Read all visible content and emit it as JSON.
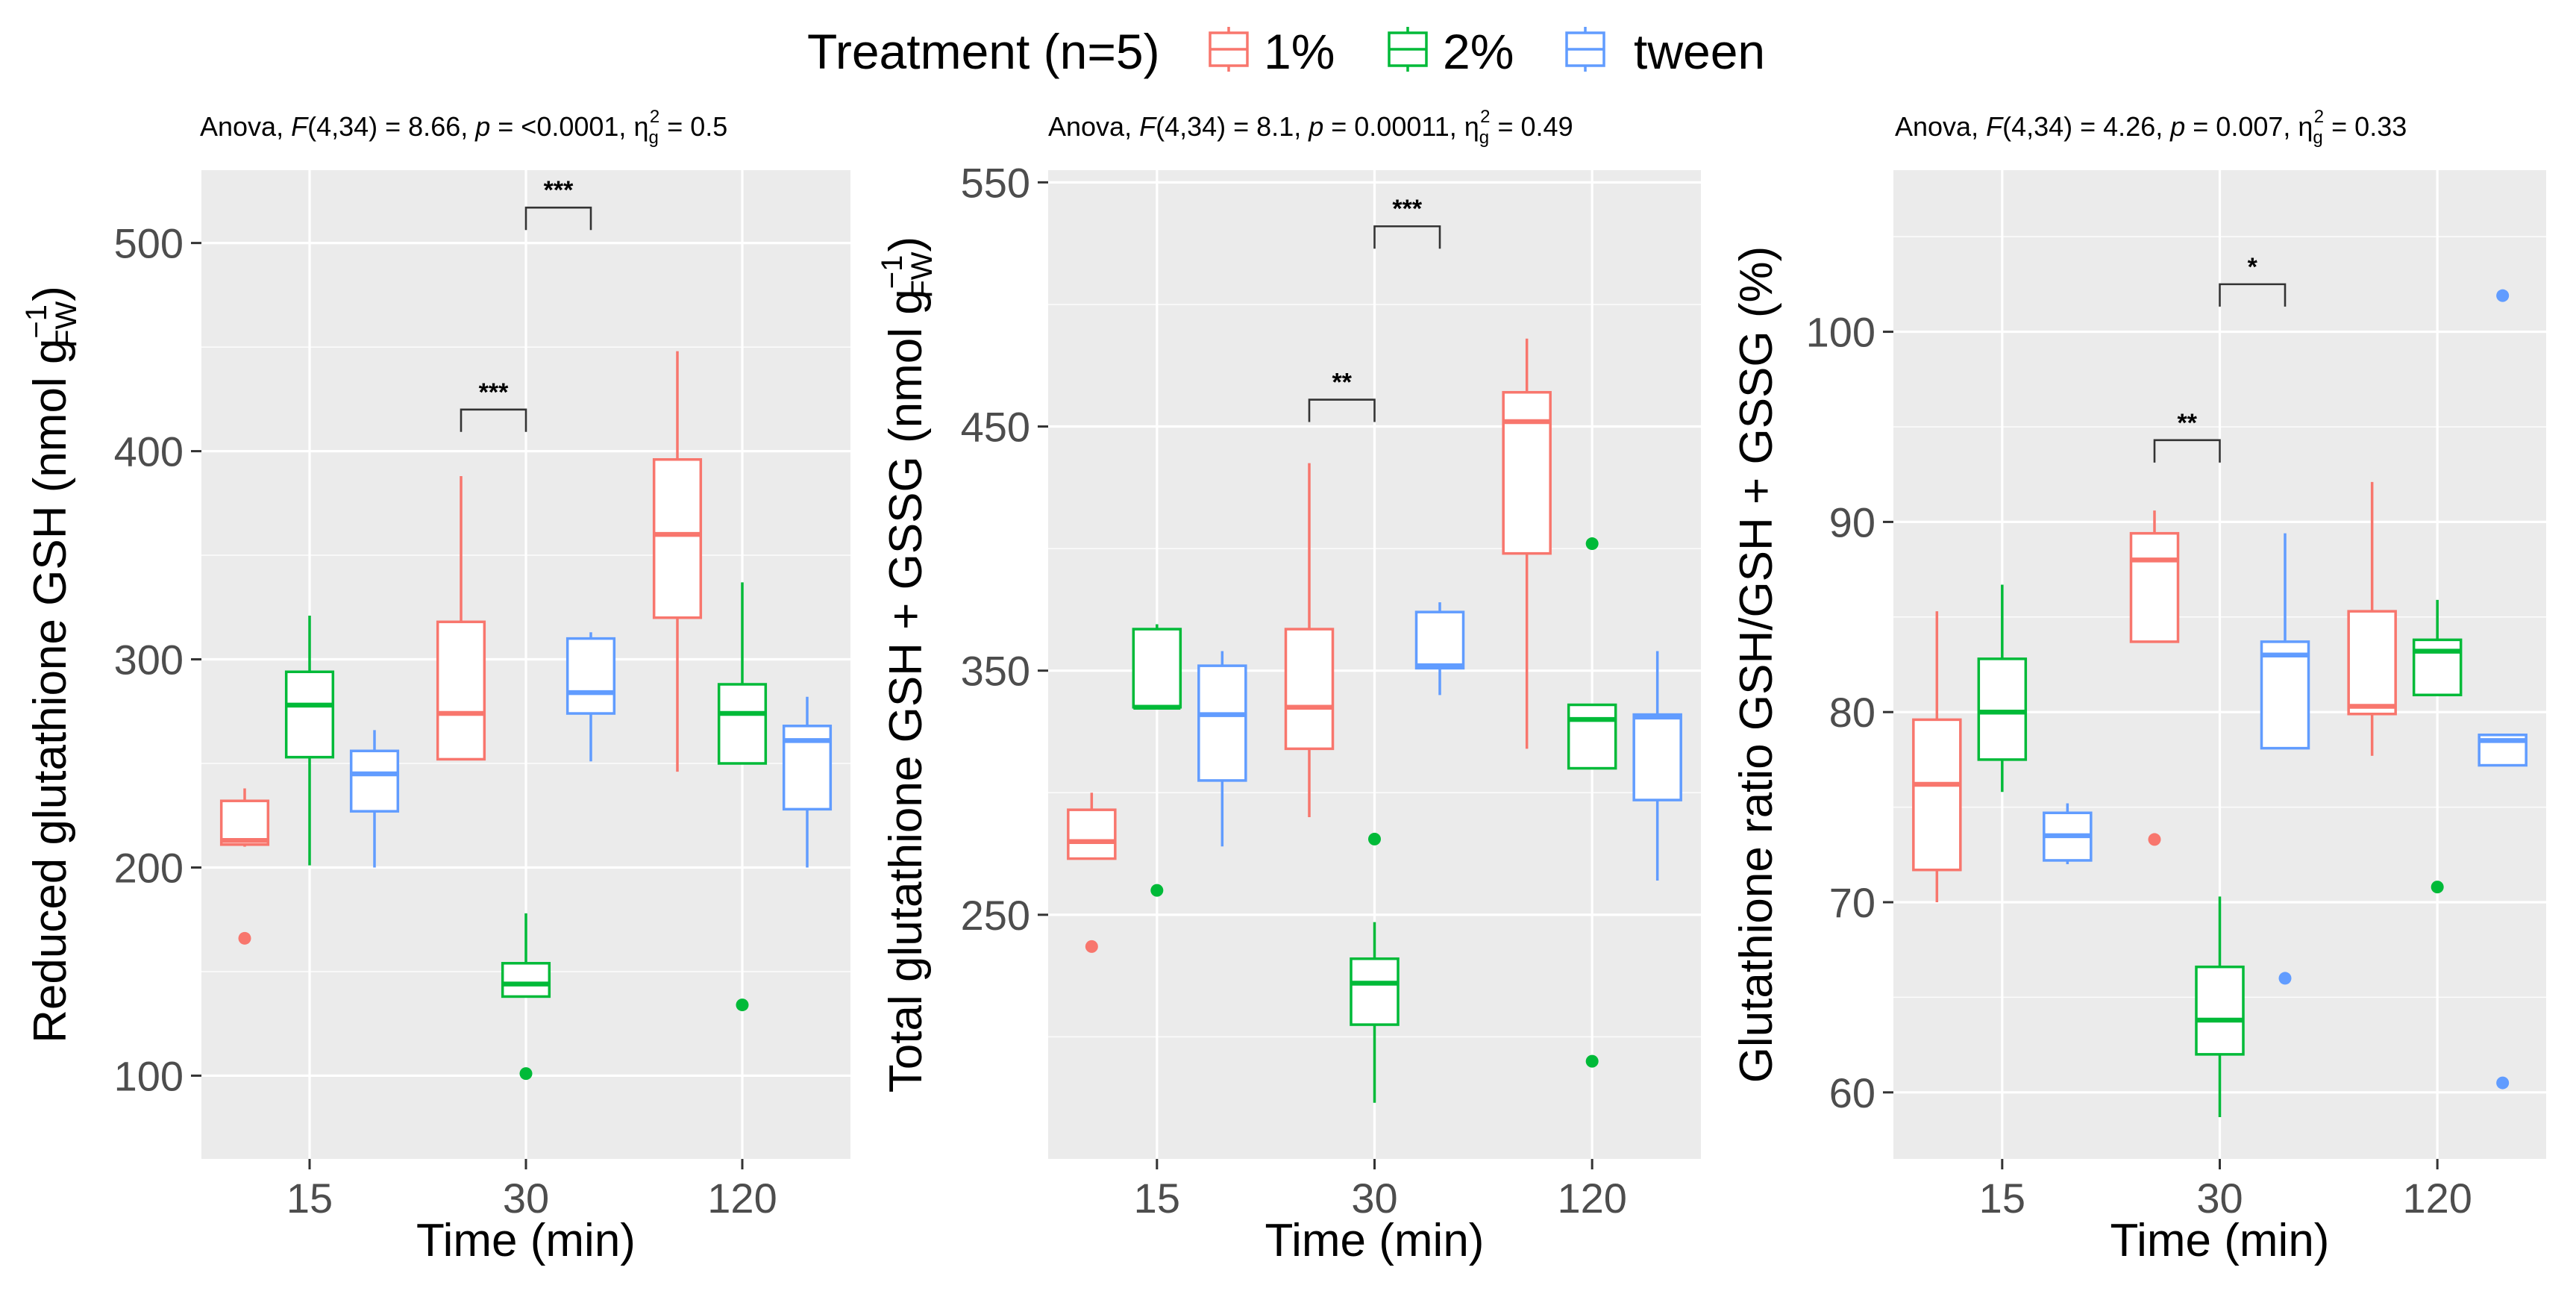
{
  "legend": {
    "title": "Treatment (n=5)",
    "entries": [
      {
        "label": "1%",
        "color": "#F8766D"
      },
      {
        "label": "2%",
        "color": "#00BA38"
      },
      {
        "label": "tween",
        "color": "#619CFF"
      }
    ]
  },
  "chart_data": [
    {
      "type": "box",
      "subtitle": {
        "prefix": "Anova, ",
        "F": "F",
        "df": "(4,34) = 8.66, ",
        "p": "p",
        "p_rest": " = <0.0001, ",
        "eta": "η",
        "eta_sub": "g",
        "eta_sup": "2",
        "eta_rest": " = 0.5"
      },
      "ylabel": {
        "main": "Reduced glutathione GSH (nmol g",
        "sup": "−1",
        "sub": "FW",
        "close": ")"
      },
      "xlabel": "Time (min)",
      "categories": [
        "15",
        "30",
        "120"
      ],
      "ylim": [
        60,
        535
      ],
      "yticks": [
        100,
        200,
        300,
        400,
        500
      ],
      "series": [
        {
          "name": "1%",
          "boxes": [
            {
              "whisker_low": 210,
              "q1": 211,
              "median": 213,
              "q3": 232,
              "whisker_high": 238,
              "outliers": [
                166
              ]
            },
            {
              "whisker_low": 252,
              "q1": 252,
              "median": 274,
              "q3": 318,
              "whisker_high": 388,
              "outliers": []
            },
            {
              "whisker_low": 246,
              "q1": 320,
              "median": 360,
              "q3": 396,
              "whisker_high": 448,
              "outliers": []
            }
          ]
        },
        {
          "name": "2%",
          "boxes": [
            {
              "whisker_low": 201,
              "q1": 253,
              "median": 278,
              "q3": 294,
              "whisker_high": 321,
              "outliers": []
            },
            {
              "whisker_low": 138,
              "q1": 138,
              "median": 144,
              "q3": 154,
              "whisker_high": 178,
              "outliers": [
                101
              ]
            },
            {
              "whisker_low": 250,
              "q1": 250,
              "median": 274,
              "q3": 288,
              "whisker_high": 337,
              "outliers": [
                134
              ]
            }
          ]
        },
        {
          "name": "tween",
          "boxes": [
            {
              "whisker_low": 200,
              "q1": 227,
              "median": 245,
              "q3": 256,
              "whisker_high": 266,
              "outliers": []
            },
            {
              "whisker_low": 251,
              "q1": 274,
              "median": 284,
              "q3": 310,
              "whisker_high": 313,
              "outliers": []
            },
            {
              "whisker_low": 200,
              "q1": 228,
              "median": 261,
              "q3": 268,
              "whisker_high": 282,
              "outliers": []
            }
          ]
        }
      ],
      "significance": [
        {
          "category": "30",
          "from": "1%",
          "to": "2%",
          "y": 420,
          "label": "***"
        },
        {
          "category": "30",
          "from": "2%",
          "to": "tween",
          "y": 517,
          "label": "***"
        }
      ]
    },
    {
      "type": "box",
      "subtitle": {
        "prefix": "Anova, ",
        "F": "F",
        "df": "(4,34) = 8.1, ",
        "p": "p",
        "p_rest": " = 0.00011, ",
        "eta": "η",
        "eta_sub": "g",
        "eta_sup": "2",
        "eta_rest": " = 0.49"
      },
      "ylabel": {
        "main": "Total glutathione GSH + GSSG (nmol g",
        "sup": "−1",
        "sub": "FW",
        "close": ")"
      },
      "xlabel": "Time (min)",
      "categories": [
        "15",
        "30",
        "120"
      ],
      "ylim": [
        150,
        555
      ],
      "yticks": [
        250,
        350,
        450,
        550
      ],
      "series": [
        {
          "name": "1%",
          "boxes": [
            {
              "whisker_low": 273,
              "q1": 273,
              "median": 280,
              "q3": 293,
              "whisker_high": 300,
              "outliers": [
                237
              ]
            },
            {
              "whisker_low": 290,
              "q1": 318,
              "median": 335,
              "q3": 367,
              "whisker_high": 435,
              "outliers": []
            },
            {
              "whisker_low": 318,
              "q1": 398,
              "median": 452,
              "q3": 464,
              "whisker_high": 486,
              "outliers": []
            }
          ]
        },
        {
          "name": "2%",
          "boxes": [
            {
              "whisker_low": 335,
              "q1": 335,
              "median": 335,
              "q3": 367,
              "whisker_high": 369,
              "outliers": [
                260
              ]
            },
            {
              "whisker_low": 173,
              "q1": 205,
              "median": 222,
              "q3": 232,
              "whisker_high": 247,
              "outliers": [
                281
              ]
            },
            {
              "whisker_low": 310,
              "q1": 310,
              "median": 330,
              "q3": 336,
              "whisker_high": 336,
              "outliers": [
                402,
                190
              ]
            }
          ]
        },
        {
          "name": "tween",
          "boxes": [
            {
              "whisker_low": 278,
              "q1": 305,
              "median": 332,
              "q3": 352,
              "whisker_high": 358,
              "outliers": []
            },
            {
              "whisker_low": 340,
              "q1": 351,
              "median": 352,
              "q3": 374,
              "whisker_high": 378,
              "outliers": []
            },
            {
              "whisker_low": 264,
              "q1": 297,
              "median": 331,
              "q3": 332,
              "whisker_high": 358,
              "outliers": []
            }
          ]
        }
      ],
      "significance": [
        {
          "category": "30",
          "from": "1%",
          "to": "2%",
          "y": 461,
          "label": "**"
        },
        {
          "category": "30",
          "from": "2%",
          "to": "tween",
          "y": 532,
          "label": "***"
        }
      ]
    },
    {
      "type": "box",
      "subtitle": {
        "prefix": "Anova, ",
        "F": "F",
        "df": "(4,34) = 4.26, ",
        "p": "p",
        "p_rest": " = 0.007, ",
        "eta": "η",
        "eta_sub": "g",
        "eta_sup": "2",
        "eta_rest": " = 0.33"
      },
      "ylabel": {
        "main": "Glutathione ratio GSH/GSH + GSSG (%)",
        "sup": "",
        "sub": "",
        "close": ""
      },
      "xlabel": "Time (min)",
      "categories": [
        "15",
        "30",
        "120"
      ],
      "ylim": [
        56.5,
        108.5
      ],
      "yticks": [
        60,
        70,
        80,
        90,
        100
      ],
      "series": [
        {
          "name": "1%",
          "boxes": [
            {
              "whisker_low": 70,
              "q1": 71.7,
              "median": 76.2,
              "q3": 79.6,
              "whisker_high": 85.3,
              "outliers": []
            },
            {
              "whisker_low": 83.7,
              "q1": 83.7,
              "median": 88,
              "q3": 89.4,
              "whisker_high": 90.6,
              "outliers": [
                73.3
              ]
            },
            {
              "whisker_low": 77.7,
              "q1": 79.9,
              "median": 80.3,
              "q3": 85.3,
              "whisker_high": 92.1,
              "outliers": []
            }
          ]
        },
        {
          "name": "2%",
          "boxes": [
            {
              "whisker_low": 75.8,
              "q1": 77.5,
              "median": 80,
              "q3": 82.8,
              "whisker_high": 86.7,
              "outliers": []
            },
            {
              "whisker_low": 58.7,
              "q1": 62,
              "median": 63.8,
              "q3": 66.6,
              "whisker_high": 70.3,
              "outliers": []
            },
            {
              "whisker_low": 80.9,
              "q1": 80.9,
              "median": 83.2,
              "q3": 83.8,
              "whisker_high": 85.9,
              "outliers": [
                70.8
              ]
            }
          ]
        },
        {
          "name": "tween",
          "boxes": [
            {
              "whisker_low": 72,
              "q1": 72.2,
              "median": 73.5,
              "q3": 74.7,
              "whisker_high": 75.2,
              "outliers": []
            },
            {
              "whisker_low": 78.1,
              "q1": 78.1,
              "median": 83,
              "q3": 83.7,
              "whisker_high": 89.4,
              "outliers": [
                66
              ]
            },
            {
              "whisker_low": 77.2,
              "q1": 77.2,
              "median": 78.5,
              "q3": 78.8,
              "whisker_high": 78.8,
              "outliers": [
                101.9,
                60.5
              ]
            }
          ]
        }
      ],
      "significance": [
        {
          "category": "30",
          "from": "1%",
          "to": "2%",
          "y": 94.3,
          "label": "**"
        },
        {
          "category": "30",
          "from": "2%",
          "to": "tween",
          "y": 102.5,
          "label": "*"
        }
      ]
    }
  ]
}
